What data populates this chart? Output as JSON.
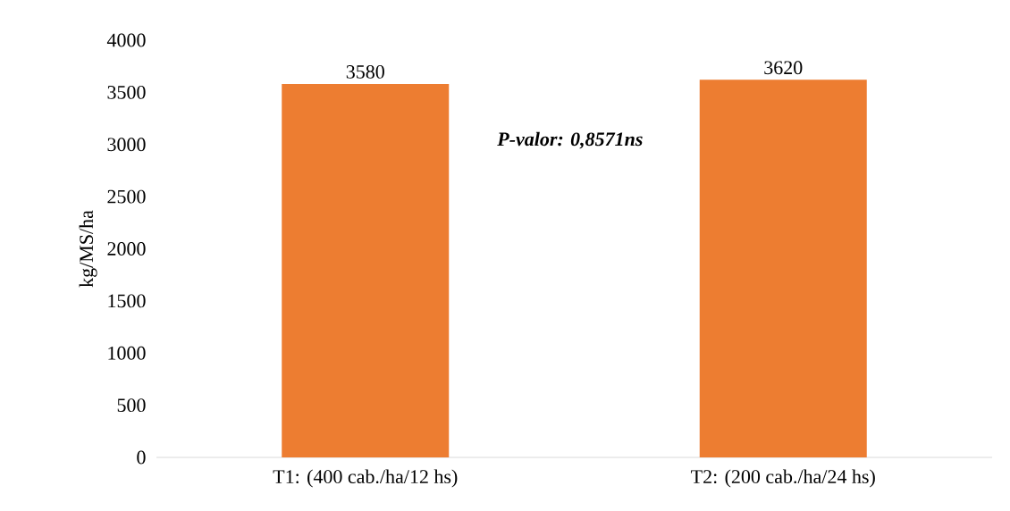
{
  "chart_data": {
    "type": "bar",
    "ylabel": "kg/MS/ha",
    "categories": [
      "T1: (400 cab./ha/12 hs)",
      "T2: (200 cab./ha/24 hs)"
    ],
    "values": [
      3580,
      3620
    ],
    "value_labels": [
      "3580",
      "3620"
    ],
    "color": "#ed7d31",
    "ylim": [
      0,
      4000
    ],
    "yticks": [
      0,
      500,
      1000,
      1500,
      2000,
      2500,
      3000,
      3500,
      4000
    ],
    "annotations": [
      "P-valor: 0,8571ns"
    ]
  }
}
